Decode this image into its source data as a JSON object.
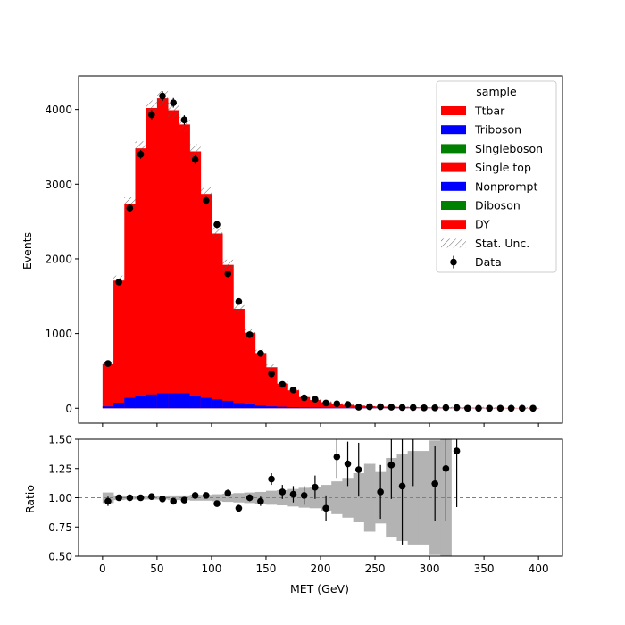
{
  "chart_data": {
    "type": "bar",
    "stacked": true,
    "x_label": "MET (GeV)",
    "upper_panel": {
      "ylabel": "Events",
      "ylim": [
        -200,
        4450
      ],
      "yticks": [
        0,
        1000,
        2000,
        3000,
        4000
      ],
      "bins": {
        "start": 0,
        "width": 10,
        "count": 40
      },
      "series": [
        {
          "name": "Ttbar",
          "color": "#ff0000",
          "stacked_total": true,
          "values": [
            590,
            1710,
            2740,
            3480,
            4020,
            4150,
            3990,
            3800,
            3440,
            2870,
            2340,
            1920,
            1330,
            1010,
            740,
            550,
            330,
            240,
            150,
            110,
            80,
            60,
            45,
            35,
            28,
            22,
            19,
            17,
            14,
            12,
            10,
            9,
            8,
            7,
            6,
            5,
            5,
            4,
            4,
            3
          ]
        },
        {
          "name": "Triboson",
          "color": "#0000ff",
          "values": [
            25,
            75,
            140,
            165,
            185,
            200,
            200,
            200,
            170,
            140,
            120,
            100,
            70,
            55,
            35,
            25,
            20,
            15,
            10,
            8,
            6,
            5,
            4,
            3,
            3,
            2,
            2,
            2,
            1,
            1,
            1,
            1,
            1,
            1,
            1,
            1,
            0,
            0,
            0,
            0
          ]
        },
        {
          "name": "Singleboson",
          "color": "#008000",
          "values": []
        },
        {
          "name": "Single top",
          "color": "#ff0000",
          "values": []
        },
        {
          "name": "Nonprompt",
          "color": "#0000ff",
          "values": []
        },
        {
          "name": "Diboson",
          "color": "#008000",
          "values": []
        },
        {
          "name": "DY",
          "color": "#ff0000",
          "values": []
        }
      ],
      "data": {
        "name": "Data",
        "x": [
          5,
          15,
          25,
          35,
          45,
          55,
          65,
          75,
          85,
          95,
          105,
          115,
          125,
          135,
          145,
          155,
          165,
          175,
          185,
          195,
          205,
          215,
          225,
          235,
          245,
          255,
          265,
          275,
          285,
          295,
          305,
          315,
          325,
          335,
          345,
          355,
          365,
          375,
          385,
          395
        ],
        "y": [
          600,
          1690,
          2680,
          3400,
          3930,
          4180,
          4090,
          3860,
          3330,
          2780,
          2460,
          1800,
          1430,
          985,
          735,
          460,
          320,
          245,
          140,
          120,
          70,
          60,
          50,
          15,
          20,
          20,
          15,
          10,
          10,
          5,
          5,
          8,
          8,
          0,
          0,
          0,
          0,
          0,
          0,
          0
        ]
      },
      "legend": {
        "title": "sample",
        "placement": "upper right",
        "extra_entries": [
          "Stat. Unc.",
          "Data"
        ]
      }
    },
    "lower_panel": {
      "ylabel": "Ratio",
      "ylim": [
        0.5,
        1.5
      ],
      "yticks": [
        0.5,
        0.75,
        1.0,
        1.25,
        1.5
      ],
      "ytick_labels": [
        "0.50",
        "0.75",
        "1.00",
        "1.25",
        "1.50"
      ],
      "reference_line": 1.0,
      "unc_band_halfwidth": [
        0.045,
        0.02,
        0.015,
        0.015,
        0.015,
        0.015,
        0.02,
        0.02,
        0.025,
        0.025,
        0.03,
        0.035,
        0.04,
        0.045,
        0.05,
        0.06,
        0.065,
        0.075,
        0.085,
        0.09,
        0.11,
        0.14,
        0.17,
        0.21,
        0.29,
        0.22,
        0.34,
        0.37,
        0.4,
        0.4,
        0.49,
        0.55,
        0.55,
        0.55,
        0.55,
        0.55,
        0.55,
        0.55,
        0.55,
        0.55
      ],
      "band_bins": 32,
      "points": [
        {
          "x": 5,
          "y": 0.97,
          "err": 0.04
        },
        {
          "x": 15,
          "y": 1.0,
          "err": 0.02
        },
        {
          "x": 25,
          "y": 1.0,
          "err": 0.02
        },
        {
          "x": 35,
          "y": 1.0,
          "err": 0.02
        },
        {
          "x": 45,
          "y": 1.01,
          "err": 0.02
        },
        {
          "x": 55,
          "y": 0.99,
          "err": 0.02
        },
        {
          "x": 65,
          "y": 0.97,
          "err": 0.02
        },
        {
          "x": 75,
          "y": 0.98,
          "err": 0.02
        },
        {
          "x": 85,
          "y": 1.02,
          "err": 0.02
        },
        {
          "x": 95,
          "y": 1.02,
          "err": 0.02
        },
        {
          "x": 105,
          "y": 0.95,
          "err": 0.02
        },
        {
          "x": 115,
          "y": 1.04,
          "err": 0.03
        },
        {
          "x": 125,
          "y": 0.91,
          "err": 0.03
        },
        {
          "x": 135,
          "y": 1.0,
          "err": 0.03
        },
        {
          "x": 145,
          "y": 0.97,
          "err": 0.04
        },
        {
          "x": 155,
          "y": 1.16,
          "err": 0.05
        },
        {
          "x": 165,
          "y": 1.05,
          "err": 0.06
        },
        {
          "x": 175,
          "y": 1.03,
          "err": 0.07
        },
        {
          "x": 185,
          "y": 1.02,
          "err": 0.08
        },
        {
          "x": 195,
          "y": 1.09,
          "err": 0.1
        },
        {
          "x": 205,
          "y": 0.91,
          "err": 0.11
        },
        {
          "x": 215,
          "y": 1.35,
          "err": 0.18
        },
        {
          "x": 225,
          "y": 1.29,
          "err": 0.19
        },
        {
          "x": 235,
          "y": 1.24,
          "err": 0.23
        },
        {
          "x": 255,
          "y": 1.05,
          "err": 0.23
        },
        {
          "x": 265,
          "y": 1.28,
          "err": 0.29
        },
        {
          "x": 275,
          "y": 1.1,
          "err": 0.5
        },
        {
          "x": 285,
          "y": 1.6,
          "err": 0.5
        },
        {
          "x": 305,
          "y": 1.12,
          "err": 0.32
        },
        {
          "x": 315,
          "y": 1.25,
          "err": 0.45
        },
        {
          "x": 325,
          "y": 1.4,
          "err": 0.48
        }
      ]
    },
    "xlim": [
      -22,
      422
    ],
    "xticks": [
      0,
      50,
      100,
      150,
      200,
      250,
      300,
      350,
      400
    ]
  }
}
